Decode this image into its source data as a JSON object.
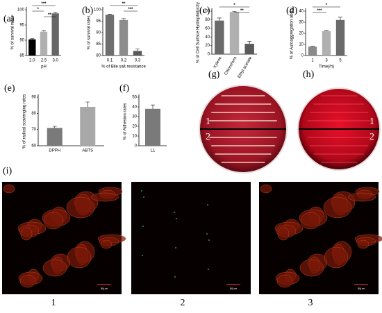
{
  "chart_data": [
    {
      "type": "bar",
      "panel_label": "(a)",
      "y_label": "% of survival rates",
      "x_label": "pH",
      "categories": [
        "2.0",
        "2.5",
        "3.0"
      ],
      "values": [
        90.3,
        92.8,
        98.8
      ],
      "errors": [
        0.2,
        0.4,
        0.3
      ],
      "colors": [
        "#000000",
        "#b0b0b0",
        "#666666"
      ],
      "ylim": [
        85,
        100
      ],
      "yticks": [
        85,
        90,
        95,
        100
      ],
      "annotations": [
        {
          "text": "***",
          "between": [
            "2.0",
            "3.0"
          ]
        },
        {
          "text": "*",
          "between": [
            "2.0",
            "2.5"
          ]
        },
        {
          "text": "**",
          "between": [
            "2.5",
            "3.0"
          ]
        }
      ]
    },
    {
      "type": "bar",
      "panel_label": "(b)",
      "y_label": "% of survival rates",
      "x_label": "% of Bile salt resistance",
      "categories": [
        "0.1",
        "0.2",
        "0.3"
      ],
      "values": [
        97.8,
        95.5,
        82
      ],
      "errors": [
        0.3,
        0.6,
        0.8
      ],
      "colors": [
        "#6e6e6e",
        "#8c8c8c",
        "#5a5a5a"
      ],
      "ylim": [
        80,
        100
      ],
      "yticks": [
        80,
        85,
        90,
        95,
        100
      ],
      "annotations": [
        {
          "text": "**",
          "between": [
            "0.1",
            "0.3"
          ]
        },
        {
          "text": "***",
          "between": [
            "0.2",
            "0.3"
          ]
        }
      ]
    },
    {
      "type": "bar",
      "panel_label": "(c)",
      "y_label": "% of Cell Surface Hydrophobicity",
      "categories": [
        "Xylene",
        "Chloroform",
        "Ethyl acetate"
      ],
      "values": [
        78,
        98,
        24
      ],
      "errors": [
        6,
        1,
        6
      ],
      "colors": [
        "#6a6a6a",
        "#b0b0b0",
        "#5a5a5a"
      ],
      "ylim": [
        0,
        100
      ],
      "yticks": [
        0,
        20,
        40,
        60,
        80,
        100
      ],
      "annotations": [
        {
          "text": "*",
          "between": [
            "Xylene",
            "Ethyl acetate"
          ]
        },
        {
          "text": "**",
          "between": [
            "Chloroform",
            "Ethyl acetate"
          ]
        }
      ]
    },
    {
      "type": "bar",
      "panel_label": "(d)",
      "y_label": "% of Autoaggregation ability",
      "x_label": "Time(/h)",
      "categories": [
        "1",
        "3",
        "5"
      ],
      "values": [
        8,
        22,
        32
      ],
      "errors": [
        0.5,
        0.8,
        2.5
      ],
      "colors": [
        "#8a8a8a",
        "#b0b0b0",
        "#6a6a6a"
      ],
      "ylim": [
        0,
        40
      ],
      "yticks": [
        0,
        10,
        20,
        30,
        40
      ],
      "annotations": [
        {
          "text": "*",
          "between": [
            "1",
            "5"
          ]
        },
        {
          "text": "***",
          "between": [
            "1",
            "3"
          ]
        }
      ]
    },
    {
      "type": "bar",
      "panel_label": "(e)",
      "y_label": "% of radical scavenging rates",
      "categories": [
        "DPPH",
        "ABTS"
      ],
      "values": [
        71,
        84
      ],
      "errors": [
        1,
        3
      ],
      "colors": [
        "#7a7a7a",
        "#a8a8a8"
      ],
      "ylim": [
        60,
        90
      ],
      "yticks": [
        60,
        70,
        80,
        90
      ],
      "annotations": []
    },
    {
      "type": "bar",
      "panel_label": "(f)",
      "y_label": "% of Adhesion rates",
      "categories": [
        "L1"
      ],
      "values": [
        38
      ],
      "errors": [
        4
      ],
      "colors": [
        "#7a7a7a"
      ],
      "ylim": [
        0,
        50
      ],
      "yticks": [
        0,
        10,
        20,
        30,
        40,
        50
      ],
      "annotations": []
    }
  ],
  "plates": [
    {
      "label": "(g)",
      "regions": [
        "1",
        "2"
      ]
    },
    {
      "label": "(h)",
      "regions": [
        "1",
        "2"
      ]
    }
  ],
  "micrographs": {
    "label": "(i)",
    "images": [
      {
        "caption": "1",
        "scale": "50μm"
      },
      {
        "caption": "2",
        "scale": "50μm"
      },
      {
        "caption": "3",
        "scale": "50μm"
      }
    ]
  }
}
